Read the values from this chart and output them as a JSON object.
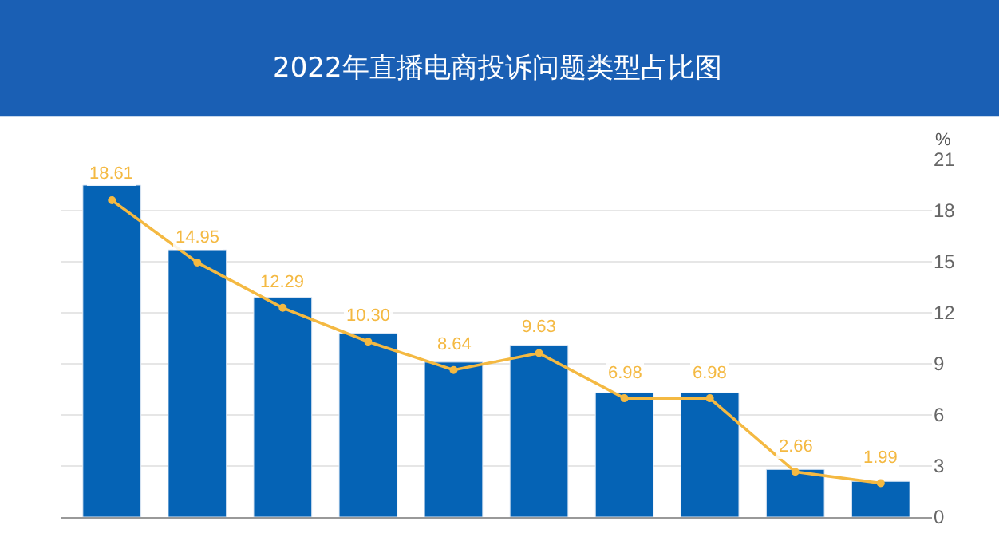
{
  "chart_data": {
    "type": "bar",
    "title": "2022年直播电商投诉问题类型占比图",
    "ylabel": "%",
    "categories": [
      null,
      null,
      null,
      null,
      null,
      null,
      null,
      null,
      null,
      null
    ],
    "series": [
      {
        "color": "#0563b5",
        "values": [
          19.5,
          15.7,
          12.9,
          10.8,
          9.1,
          10.1,
          7.3,
          7.3,
          2.8,
          2.1
        ]
      },
      {
        "type": "line",
        "color": "#f4b942",
        "values": [
          18.61,
          14.95,
          12.29,
          10.3,
          8.64,
          9.63,
          6.98,
          6.98,
          2.66,
          1.99
        ],
        "value_labels": [
          "18.61",
          "14.95",
          "12.29",
          "10.30",
          "8.64",
          "9.63",
          "6.98",
          "6.98",
          "2.66",
          "1.99"
        ],
        "marker": "circle"
      }
    ],
    "ylim": [
      0,
      21
    ],
    "yticks": [
      0,
      3,
      6,
      9,
      12,
      15,
      18,
      21
    ],
    "grid": "y"
  }
}
